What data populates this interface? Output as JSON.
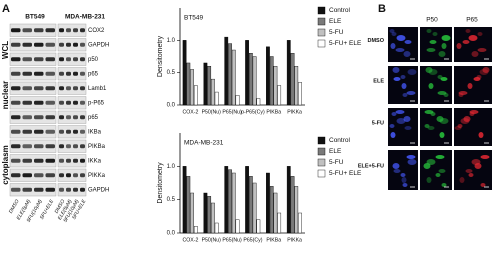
{
  "panel_a": {
    "label": "A",
    "groups": [
      "WCL",
      "nuclear",
      "cytoplasm"
    ],
    "cell_lines": [
      "BT549",
      "MDA-MB-231"
    ],
    "proteins": [
      "COX2",
      "GAPDH",
      "p50",
      "p65",
      "Lamb1",
      "p-P65",
      "p65",
      "IKBa",
      "PIKBa",
      "IKKa",
      "PIKKa",
      "GAPDH"
    ],
    "lanes": [
      "DMSO",
      "ELE(5μM)",
      "5FU(10μM)",
      "5FU+ELE"
    ]
  },
  "chart_data": [
    {
      "type": "bar",
      "title": "BT549",
      "y_label": "Densitometry",
      "categories": [
        "COX-2",
        "P50(Nu)",
        "P65(Nu)",
        "p-P65(Cy)",
        "PIKBa",
        "PIKKa"
      ],
      "series": [
        {
          "name": "Control",
          "color": "#111111",
          "values": [
            1.0,
            0.65,
            1.05,
            1.0,
            0.9,
            1.0
          ]
        },
        {
          "name": "ELE",
          "color": "#7a7a7a",
          "values": [
            0.65,
            0.6,
            0.95,
            0.8,
            0.75,
            0.8
          ]
        },
        {
          "name": "5-FU",
          "color": "#c0c0c0",
          "values": [
            0.55,
            0.4,
            0.85,
            0.75,
            0.6,
            0.6
          ]
        },
        {
          "name": "5-FU+ ELE",
          "color": "#ffffff",
          "values": [
            0.3,
            0.2,
            0.15,
            0.1,
            0.3,
            0.35
          ]
        }
      ],
      "ylim": [
        0,
        1.5
      ],
      "yticks": [
        {
          "value": 0,
          "label": "0.0"
        },
        {
          "value": 0.5,
          "label": "0.5"
        },
        {
          "value": 1,
          "label": "1.0"
        }
      ],
      "legend": "right"
    },
    {
      "type": "bar",
      "title": "MDA-MB-231",
      "y_label": "Densitometry",
      "categories": [
        "COX-2",
        "P50(Nu)",
        "P65(Nu)",
        "P65(Cy)",
        "PIKBa",
        "PIKKa"
      ],
      "series": [
        {
          "name": "Control",
          "color": "#111111",
          "values": [
            1.0,
            0.6,
            1.0,
            1.0,
            0.9,
            1.0
          ]
        },
        {
          "name": "ELE",
          "color": "#7a7a7a",
          "values": [
            0.85,
            0.55,
            0.95,
            0.85,
            0.7,
            0.85
          ]
        },
        {
          "name": "5-FU",
          "color": "#c0c0c0",
          "values": [
            0.6,
            0.45,
            0.9,
            0.75,
            0.6,
            0.7
          ]
        },
        {
          "name": "5-FU+ ELE",
          "color": "#ffffff",
          "values": [
            0.1,
            0.15,
            0.2,
            0.2,
            0.3,
            0.3
          ]
        }
      ],
      "ylim": [
        0,
        1.5
      ],
      "yticks": [
        {
          "value": 0,
          "label": "0.0"
        },
        {
          "value": 0.5,
          "label": "0.5"
        },
        {
          "value": 1,
          "label": "1.0"
        }
      ],
      "legend": "right"
    }
  ],
  "panel_b": {
    "label": "B",
    "columns": [
      "P50",
      "P65"
    ],
    "rows": [
      "DMSO",
      "ELE",
      "5-FU",
      "ELE+5-FU"
    ]
  }
}
